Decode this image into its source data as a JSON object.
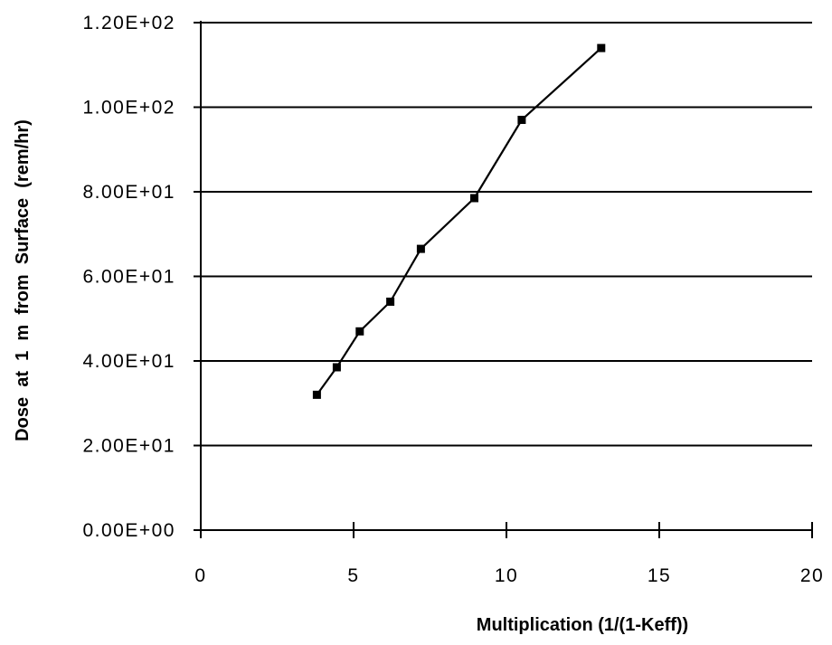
{
  "chart_data": {
    "type": "line",
    "title": "",
    "xlabel": "Multiplication (1/(1-Keff))",
    "ylabel": "Dose  at  1  m  from  Surface  (rem/hr)",
    "xlim": [
      0,
      20
    ],
    "ylim": [
      0,
      120
    ],
    "x_ticks": [
      0,
      5,
      10,
      15,
      20
    ],
    "x_tick_labels": [
      "0",
      "5",
      "10",
      "15",
      "20"
    ],
    "y_ticks": [
      0,
      20,
      40,
      60,
      80,
      100,
      120
    ],
    "y_tick_labels": [
      "0.00E+00",
      "2.00E+01",
      "4.00E+01",
      "6.00E+01",
      "8.00E+01",
      "1.00E+02",
      "1.20E+02"
    ],
    "grid": "horizontal",
    "legend": "none",
    "series": [
      {
        "marker": "square",
        "color": "#000000",
        "x": [
          3.8,
          4.45,
          5.2,
          6.2,
          7.2,
          8.95,
          10.5,
          13.1
        ],
        "y": [
          32,
          38.5,
          47,
          54,
          66.5,
          78.5,
          97,
          114
        ]
      }
    ]
  }
}
